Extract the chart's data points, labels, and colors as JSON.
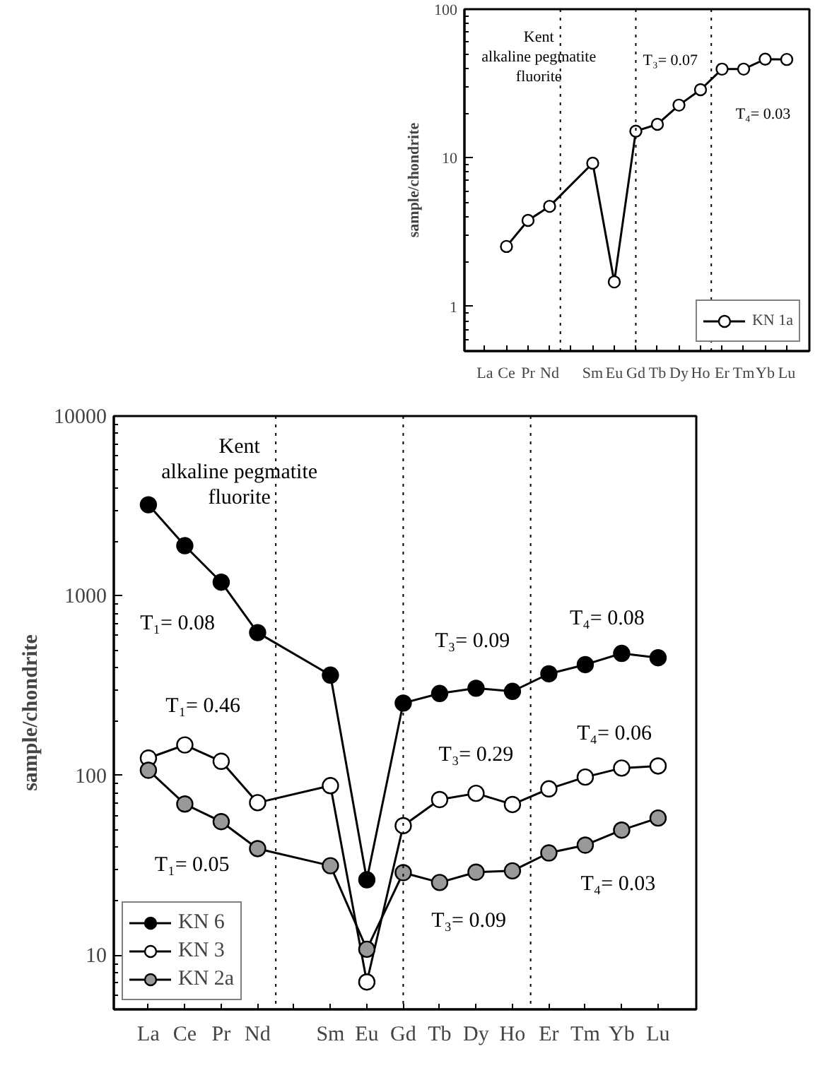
{
  "chart_data": [
    {
      "type": "line",
      "title": "Kent\nalkaline pegmatite\nfluorite",
      "ylabel": "sample/chondrite",
      "categories": [
        "La",
        "Ce",
        "Pr",
        "Nd",
        null,
        "Sm",
        "Eu",
        "Gd",
        "Tb",
        "Dy",
        "Ho",
        "Er",
        "Tm",
        "Yb",
        "Lu"
      ],
      "series": [
        {
          "name": "KN 1a",
          "color": "#ffffff",
          "values": [
            null,
            2.53,
            3.79,
            4.71,
            null,
            9.2,
            1.46,
            15.1,
            16.8,
            22.6,
            28.7,
            39.5,
            39.5,
            46.1,
            45.9
          ]
        }
      ],
      "ylim": [
        0.5,
        100
      ],
      "yticks": [
        1,
        10,
        100
      ],
      "log": true,
      "marker": "circle",
      "legend": "bottom right",
      "ref_lines": [
        {
          "axis": "x",
          "value": "Gd",
          "line_style": "dotted"
        }
      ],
      "annotations": [
        "T₃= 0.07",
        "T₄= 0.03"
      ]
    },
    {
      "type": "line",
      "title": "Kent\nalkaline pegmatite\nfluorite",
      "ylabel": "sample/chondrite",
      "categories": [
        "La",
        "Ce",
        "Pr",
        "Nd",
        null,
        "Sm",
        "Eu",
        "Gd",
        "Tb",
        "Dy",
        "Ho",
        "Er",
        "Tm",
        "Yb",
        "Lu"
      ],
      "series": [
        {
          "name": "KN 6",
          "color": "#000000",
          "values": [
            3210,
            1900,
            1190,
            624,
            null,
            362,
            26.3,
            253,
            286,
            306,
            294,
            368,
            414,
            478,
            452
          ]
        },
        {
          "name": "KN 3",
          "color": "#ffffff",
          "values": [
            125,
            148,
            120,
            70.6,
            null,
            87.8,
            7.1,
            52.6,
            73.5,
            79.6,
            69,
            84.3,
            98,
            110,
            113
          ]
        },
        {
          "name": "KN 2a",
          "color": "#999999",
          "values": [
            107,
            69.4,
            55.4,
            39.2,
            null,
            31.5,
            10.8,
            28.8,
            25.4,
            29,
            29.5,
            37.1,
            41,
            49.7,
            58
          ]
        }
      ],
      "ylim": [
        5,
        10000
      ],
      "yticks": [
        10,
        100,
        1000,
        10000
      ],
      "log": true,
      "marker": "circle",
      "legend": "bottom left",
      "ref_lines": [
        {
          "axis": "x",
          "value": "Gd",
          "line_style": "dotted"
        }
      ],
      "annotations": [
        "T₁= 0.08",
        "T₁= 0.46",
        "T₁= 0.05",
        "T₃= 0.09",
        "T₄= 0.08",
        "T₃= 0.29",
        "T₄= 0.06",
        "T₃= 0.09",
        "T₄= 0.03"
      ]
    }
  ]
}
